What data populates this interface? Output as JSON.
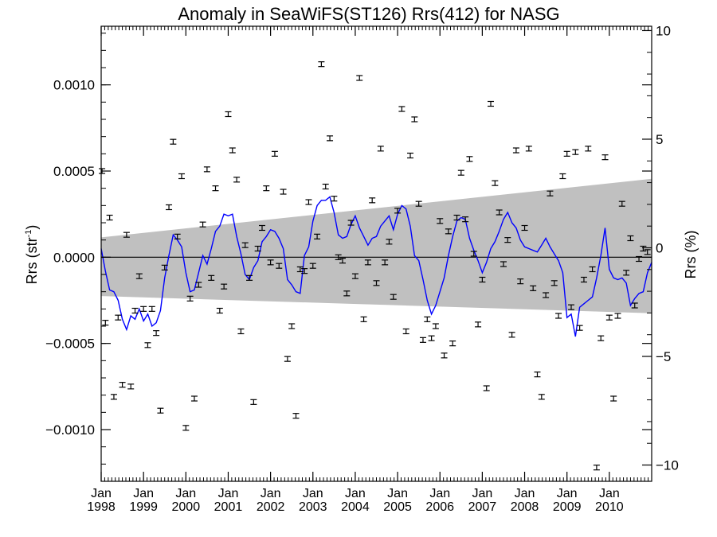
{
  "chart_data": {
    "type": "scatter",
    "title": "Anomaly in SeaWiFS(ST126) Rrs(412) for NASG",
    "ylabel_left": "Rrs (str",
    "ylabel_left_sup": "-1",
    "ylabel_left_close": ")",
    "ylabel_right": "Rrs (%)",
    "xlim": [
      1998.0,
      2011.0
    ],
    "ylim": [
      -0.0013,
      0.00134
    ],
    "ylim_right_percent": [
      -10.75,
      10.2
    ],
    "left_ticks": [
      {
        "value": 0.001,
        "label": "0.0010"
      },
      {
        "value": 0.0005,
        "label": "0.0005"
      },
      {
        "value": 0.0,
        "label": "0.0000"
      },
      {
        "value": -0.0005,
        "label": "−0.0005"
      },
      {
        "value": -0.001,
        "label": "−0.0010"
      }
    ],
    "right_ticks": [
      {
        "value": 10,
        "label": "10"
      },
      {
        "value": 5,
        "label": "5"
      },
      {
        "value": 0,
        "label": "0"
      },
      {
        "value": -5,
        "label": "−5"
      },
      {
        "value": -10,
        "label": "−10"
      }
    ],
    "x_ticks": [
      {
        "value": 1998,
        "month": "Jan",
        "year": "1998"
      },
      {
        "value": 1999,
        "month": "Jan",
        "year": "1999"
      },
      {
        "value": 2000,
        "month": "Jan",
        "year": "2000"
      },
      {
        "value": 2001,
        "month": "Jan",
        "year": "2001"
      },
      {
        "value": 2002,
        "month": "Jan",
        "year": "2002"
      },
      {
        "value": 2003,
        "month": "Jan",
        "year": "2003"
      },
      {
        "value": 2004,
        "month": "Jan",
        "year": "2004"
      },
      {
        "value": 2005,
        "month": "Jan",
        "year": "2005"
      },
      {
        "value": 2006,
        "month": "Jan",
        "year": "2006"
      },
      {
        "value": 2007,
        "month": "Jan",
        "year": "2007"
      },
      {
        "value": 2008,
        "month": "Jan",
        "year": "2008"
      },
      {
        "value": 2009,
        "month": "Jan",
        "year": "2009"
      },
      {
        "value": 2010,
        "month": "Jan",
        "year": "2010"
      }
    ],
    "grid": false,
    "zero_line": true,
    "confidence_band": {
      "x": [
        1998.0,
        2011.0
      ],
      "upper": [
        0.000115,
        0.000455
      ],
      "lower": [
        -0.000225,
        -0.000325
      ],
      "color": "#c0c0c0"
    },
    "colors": {
      "points": "#000000",
      "line": "#0000ff",
      "band": "#c0c0c0",
      "zero_line": "#000000"
    },
    "points": {
      "x": [
        1998.02,
        1998.1,
        1998.2,
        1998.3,
        1998.4,
        1998.5,
        1998.6,
        1998.7,
        1998.8,
        1998.9,
        1999.0,
        1999.1,
        1999.2,
        1999.3,
        1999.4,
        1999.5,
        1999.6,
        1999.7,
        1999.8,
        1999.9,
        2000.0,
        2000.1,
        2000.2,
        2000.3,
        2000.4,
        2000.5,
        2000.6,
        2000.7,
        2000.8,
        2000.9,
        2001.0,
        2001.1,
        2001.2,
        2001.3,
        2001.4,
        2001.5,
        2001.6,
        2001.7,
        2001.8,
        2001.9,
        2002.0,
        2002.1,
        2002.2,
        2002.3,
        2002.4,
        2002.5,
        2002.6,
        2002.7,
        2002.8,
        2002.9,
        2003.0,
        2003.1,
        2003.2,
        2003.3,
        2003.4,
        2003.5,
        2003.6,
        2003.7,
        2003.8,
        2003.9,
        2004.0,
        2004.1,
        2004.2,
        2004.3,
        2004.4,
        2004.5,
        2004.6,
        2004.7,
        2004.8,
        2004.9,
        2005.0,
        2005.1,
        2005.2,
        2005.3,
        2005.4,
        2005.5,
        2005.6,
        2005.7,
        2005.8,
        2005.9,
        2006.0,
        2006.1,
        2006.2,
        2006.3,
        2006.4,
        2006.5,
        2006.6,
        2006.7,
        2006.8,
        2006.9,
        2007.0,
        2007.1,
        2007.2,
        2007.3,
        2007.4,
        2007.5,
        2007.6,
        2007.7,
        2007.8,
        2007.9,
        2008.0,
        2008.1,
        2008.2,
        2008.3,
        2008.4,
        2008.5,
        2008.6,
        2008.7,
        2008.8,
        2008.9,
        2009.0,
        2009.1,
        2009.2,
        2009.3,
        2009.4,
        2009.5,
        2009.6,
        2009.7,
        2009.8,
        2009.9,
        2010.0,
        2010.1,
        2010.2,
        2010.3,
        2010.4,
        2010.5,
        2010.6,
        2010.7,
        2010.8,
        2010.9
      ],
      "y": [
        0.0005,
        -0.00038,
        0.00023,
        -0.00081,
        -0.00035,
        -0.00074,
        0.00013,
        -0.00075,
        -0.00031,
        -0.00011,
        -0.0003,
        -0.00051,
        -0.0003,
        -0.00044,
        -0.00089,
        -6e-05,
        0.00029,
        0.00067,
        0.00012,
        0.00047,
        -0.00099,
        -0.00024,
        -0.00082,
        -0.00016,
        0.00019,
        0.00051,
        -0.00012,
        0.0004,
        -0.00031,
        -0.00017,
        0.00083,
        0.00062,
        0.00045,
        -0.00043,
        7e-05,
        -0.00012,
        -0.00084,
        5e-05,
        0.00017,
        0.0004,
        -3e-05,
        0.0006,
        -5e-05,
        0.00038,
        -0.00059,
        -0.0004,
        -0.00092,
        -7e-05,
        -8e-05,
        0.00032,
        -5e-05,
        0.00012,
        0.00112,
        0.00041,
        0.00069,
        0.00034,
        0.0,
        -2e-05,
        -0.00021,
        0.0002,
        -0.00011,
        0.00104,
        -0.00036,
        -3e-05,
        0.00033,
        -0.00015,
        0.00063,
        -3e-05,
        9e-05,
        -0.00023,
        0.00027,
        0.00086,
        -0.00043,
        0.00059,
        0.0008,
        0.00031,
        -0.00048,
        -0.00036,
        -0.00047,
        -0.0004,
        0.00021,
        -0.00057,
        0.00015,
        -0.0005,
        0.00023,
        0.00049,
        0.00022,
        0.00057,
        2e-05,
        -0.00039,
        -0.00013,
        -0.00076,
        0.00089,
        0.00043,
        0.00026,
        -4e-05,
        0.0001,
        -0.00045,
        0.00062,
        -0.00014,
        0.00017,
        0.00063,
        -0.00018,
        -0.00068,
        -0.00081,
        -0.00022,
        0.00037,
        -0.00015,
        -0.00034,
        0.00047,
        0.0006,
        -0.00029,
        0.00061,
        -0.00041,
        -0.00013,
        0.00063,
        -7e-05,
        -0.00122,
        -0.00047,
        0.00058,
        -0.00035,
        -0.00082,
        -0.00034,
        0.00031,
        -9e-05,
        0.00011,
        -0.00028,
        -1e-05,
        5e-05,
        3e-05
      ],
      "err": 1.2e-05
    },
    "smooth_line": {
      "x": [
        1998.0,
        1998.1,
        1998.2,
        1998.3,
        1998.4,
        1998.5,
        1998.6,
        1998.7,
        1998.8,
        1998.9,
        1999.0,
        1999.1,
        1999.2,
        1999.3,
        1999.4,
        1999.5,
        1999.6,
        1999.7,
        1999.8,
        1999.9,
        2000.0,
        2000.1,
        2000.2,
        2000.3,
        2000.4,
        2000.5,
        2000.6,
        2000.7,
        2000.8,
        2000.9,
        2001.0,
        2001.1,
        2001.2,
        2001.3,
        2001.4,
        2001.5,
        2001.6,
        2001.7,
        2001.8,
        2001.9,
        2002.0,
        2002.1,
        2002.2,
        2002.3,
        2002.4,
        2002.5,
        2002.6,
        2002.7,
        2002.8,
        2002.9,
        2003.0,
        2003.1,
        2003.2,
        2003.3,
        2003.4,
        2003.5,
        2003.6,
        2003.7,
        2003.8,
        2003.9,
        2004.0,
        2004.1,
        2004.2,
        2004.3,
        2004.4,
        2004.5,
        2004.6,
        2004.7,
        2004.8,
        2004.9,
        2005.0,
        2005.1,
        2005.2,
        2005.3,
        2005.4,
        2005.5,
        2005.6,
        2005.7,
        2005.8,
        2005.9,
        2006.0,
        2006.1,
        2006.2,
        2006.3,
        2006.4,
        2006.5,
        2006.6,
        2006.7,
        2006.8,
        2006.9,
        2007.0,
        2007.1,
        2007.2,
        2007.3,
        2007.4,
        2007.5,
        2007.6,
        2007.7,
        2007.8,
        2007.9,
        2008.0,
        2008.1,
        2008.2,
        2008.3,
        2008.4,
        2008.5,
        2008.6,
        2008.7,
        2008.8,
        2008.9,
        2009.0,
        2009.1,
        2009.2,
        2009.3,
        2009.4,
        2009.5,
        2009.6,
        2009.7,
        2009.8,
        2009.9,
        2010.0,
        2010.1,
        2010.2,
        2010.3,
        2010.4,
        2010.5,
        2010.6,
        2010.7,
        2010.8,
        2010.9,
        2011.0
      ],
      "y": [
        5e-05,
        -8e-05,
        -0.00019,
        -0.0002,
        -0.00025,
        -0.00036,
        -0.00042,
        -0.00034,
        -0.00036,
        -0.0003,
        -0.00037,
        -0.00033,
        -0.0004,
        -0.00038,
        -0.00031,
        -0.00012,
        1e-05,
        0.00013,
        0.0001,
        6e-05,
        -9e-05,
        -0.0002,
        -0.00019,
        -9e-05,
        1e-05,
        -4e-05,
        5e-05,
        0.00015,
        0.00018,
        0.00025,
        0.00024,
        0.00025,
        0.00012,
        2e-05,
        -0.0001,
        -0.00013,
        -6e-05,
        -2e-05,
        9e-05,
        0.00012,
        0.00016,
        0.00015,
        0.00011,
        5e-05,
        -0.00013,
        -0.00016,
        -0.0002,
        -0.00021,
        1e-05,
        6e-05,
        0.00021,
        0.0003,
        0.00033,
        0.00033,
        0.00035,
        0.00026,
        0.00013,
        0.00011,
        0.00012,
        0.00019,
        0.00024,
        0.00017,
        0.00012,
        7e-05,
        0.00011,
        0.00012,
        0.00018,
        0.00021,
        0.00024,
        0.00016,
        0.00025,
        0.0003,
        0.00028,
        0.00018,
        1e-05,
        -2e-05,
        -0.00013,
        -0.00025,
        -0.00033,
        -0.00028,
        -0.0002,
        -0.00012,
        1e-05,
        0.00012,
        0.00021,
        0.00023,
        0.00022,
        0.00011,
        4e-05,
        -2e-05,
        -9e-05,
        -3e-05,
        5e-05,
        9e-05,
        0.00015,
        0.00022,
        0.00026,
        0.0002,
        0.00017,
        0.0001,
        6e-05,
        5e-05,
        4e-05,
        3e-05,
        7e-05,
        0.00011,
        6e-05,
        2e-05,
        -2e-05,
        -9e-05,
        -0.00035,
        -0.00033,
        -0.00046,
        -0.00029,
        -0.00027,
        -0.00025,
        -0.00023,
        -0.00012,
        1e-05,
        0.00017,
        -7e-05,
        -0.00012,
        -0.00013,
        -0.00012,
        -0.00015,
        -0.00028,
        -0.00024,
        -0.00021,
        -0.0002,
        -9e-05,
        -3e-05
      ]
    }
  }
}
